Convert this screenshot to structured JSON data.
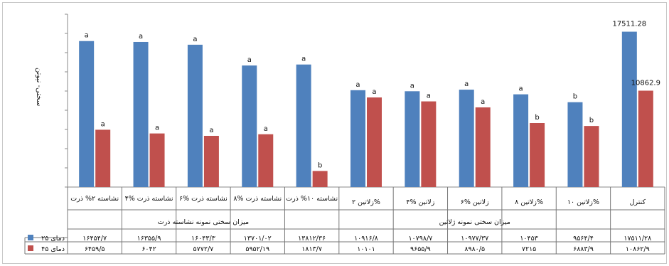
{
  "chart_data": {
    "type": "bar",
    "ylabel": "سختی- نیوتن",
    "categories": [
      "نشاسته ۲% ذرت",
      "۴% نشاسته ذرت",
      "۶% نشاسته ذرت",
      "۸% نشاسته ذرت",
      "نشاسته ۱۰% ذرت",
      "زلاتین ۲%",
      "۴% زلاتین",
      "۶% زلاتین",
      "زلاتین ۸%",
      "زلاتین ۱۰%",
      "کنترل"
    ],
    "groups": [
      {
        "label": "میزان سختی نمونه نشاسته ذرت",
        "span": [
          0,
          4
        ]
      },
      {
        "label": "میزان سختی نمونه ژلاتین",
        "span": [
          5,
          9
        ]
      }
    ],
    "series": [
      {
        "name": "دمای ۲۵",
        "color": "#4f81bd",
        "values": [
          16454.7,
          16355.9,
          16043.3,
          13701.02,
          13812.36,
          10916.8,
          10798.7,
          10977.37,
          10453,
          9564.4,
          17511.28
        ],
        "value_labels": [
          "۱۶۴۵۴/۷",
          "۱۶۳۵۵/۹",
          "۱۶۰۴۳/۳",
          "۱۳۷۰۱/۰۲",
          "۱۳۸۱۲/۳۶",
          "۱۰۹۱۶/۸",
          "۱۰۷۹۸/۷",
          "۱۰۹۷۷/۳۷",
          "۱۰۴۵۳",
          "۹۵۶۴/۴",
          "۱۷۵۱۱/۲۸"
        ],
        "letters": [
          "a",
          "a",
          "a",
          "a",
          "a",
          "a",
          "a",
          "a",
          "a",
          "b",
          ""
        ]
      },
      {
        "name": "دمای ۴۵",
        "color": "#c0504d",
        "values": [
          6459.5,
          6042,
          5772.7,
          5952.19,
          1813.7,
          10101,
          9655.9,
          8980.5,
          7215,
          6883.9,
          10862.9
        ],
        "value_labels": [
          "۶۴۵۹/۵",
          "۶۰۴۲",
          "۵۷۷۲/۷",
          "۵۹۵۲/۱۹",
          "۱۸۱۳/۷",
          "۱۰۱۰۱",
          "۹۶۵۵/۹",
          "۸۹۸۰/۵",
          "۷۲۱۵",
          "۶۸۸۳/۹",
          "۱۰۸۶۲/۹"
        ],
        "letters": [
          "a",
          "a",
          "a",
          "a",
          "b",
          "a",
          "a",
          "a",
          "b",
          "b",
          ""
        ]
      }
    ],
    "bar_annotations": [
      {
        "category": 10,
        "series": 0,
        "text": "17511.28"
      },
      {
        "category": 10,
        "series": 1,
        "text": "10862.9"
      }
    ],
    "ylim": [
      0,
      20000
    ],
    "grid": false,
    "legend": "data-table-left"
  }
}
